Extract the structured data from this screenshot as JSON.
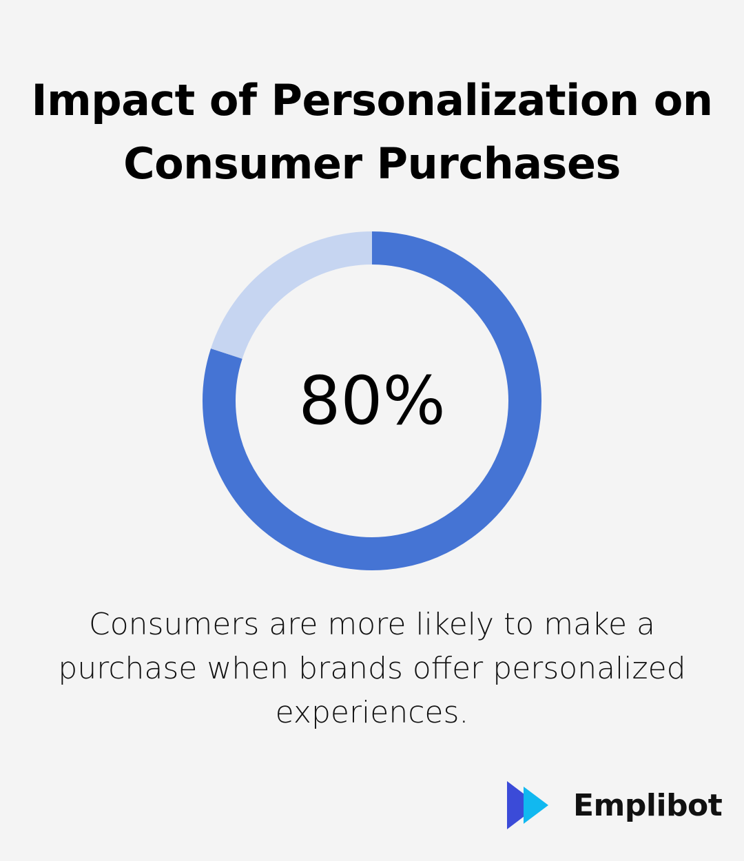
{
  "title": "Impact of Personalization on Consumer Purchases",
  "chart_data": {
    "type": "pie",
    "variant": "donut",
    "value": 80,
    "remainder": 20,
    "unit": "%",
    "center_label": "80%",
    "slices": [
      {
        "value": 80,
        "color": "#4574d4"
      },
      {
        "value": 20,
        "color": "#c6d5f1"
      }
    ]
  },
  "caption": "Consumers are more likely to make a purchase when brands offer personalized experiences.",
  "brand": {
    "name": "Emplibot",
    "icon": "double-play-arrow-icon",
    "colors": {
      "dark": "#3b4bd8",
      "light": "#11b8f0"
    }
  }
}
